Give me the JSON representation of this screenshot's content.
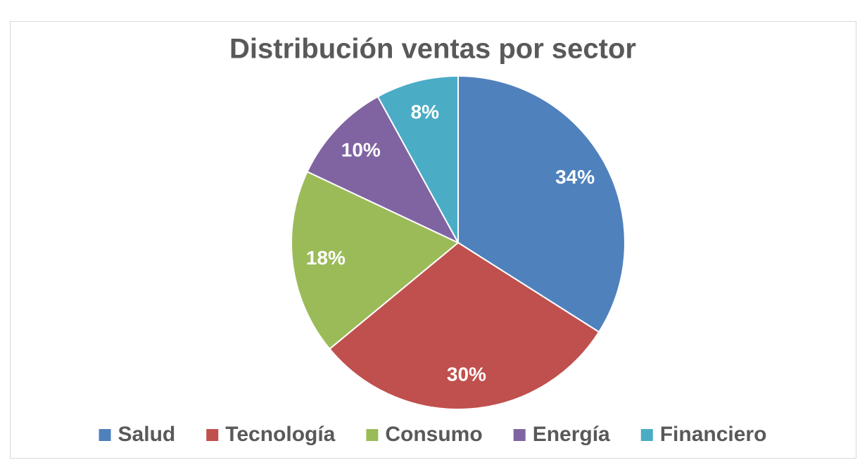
{
  "chart_data": {
    "type": "pie",
    "title": "Distribución ventas por sector",
    "categories": [
      "Salud",
      "Tecnología",
      "Consumo",
      "Energía",
      "Financiero"
    ],
    "values": [
      34,
      30,
      18,
      10,
      8
    ],
    "value_labels": [
      "34%",
      "30%",
      "18%",
      "10%",
      "8%"
    ],
    "colors": [
      "#4f81bd",
      "#c0504d",
      "#9bbb59",
      "#8064a2",
      "#4bacc6"
    ],
    "legend": "bottom"
  }
}
